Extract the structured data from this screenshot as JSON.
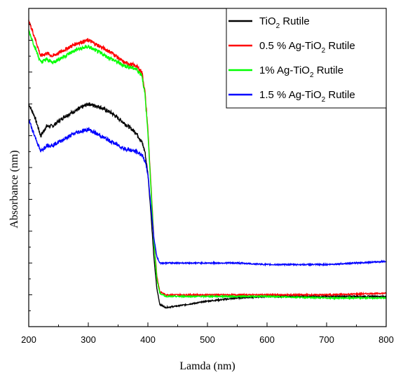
{
  "chart_data": {
    "type": "line",
    "title": "",
    "xlabel": "Lamda (nm)",
    "ylabel": "Absorbance (nm)",
    "xlim": [
      200,
      800
    ],
    "ylim": [
      0,
      1
    ],
    "x_ticks": [
      "200",
      "300",
      "400",
      "500",
      "600",
      "700",
      "800"
    ],
    "y_tick_labels": "none",
    "grid": false,
    "legend_position": "top-right",
    "series": [
      {
        "name": "TiO2 Rutile",
        "name_main": "TiO",
        "name_sub": "2",
        "name_rest": " Rutile",
        "color": "#000000",
        "x": [
          200,
          210,
          220,
          230,
          240,
          260,
          280,
          300,
          320,
          340,
          360,
          380,
          390,
          395,
          400,
          405,
          410,
          415,
          420,
          430,
          450,
          500,
          550,
          600,
          700,
          800
        ],
        "y": [
          0.7,
          0.66,
          0.6,
          0.63,
          0.63,
          0.66,
          0.68,
          0.7,
          0.69,
          0.67,
          0.64,
          0.61,
          0.58,
          0.55,
          0.48,
          0.36,
          0.22,
          0.12,
          0.07,
          0.06,
          0.065,
          0.08,
          0.09,
          0.095,
          0.095,
          0.095
        ]
      },
      {
        "name": "0.5 % Ag-TiO2 Rutile",
        "name_main": "0.5 % Ag-TiO",
        "name_sub": "2",
        "name_rest": " Rutile",
        "color": "#ff0000",
        "x": [
          200,
          210,
          220,
          230,
          240,
          260,
          280,
          300,
          320,
          340,
          360,
          380,
          390,
          395,
          400,
          405,
          410,
          415,
          420,
          430,
          450,
          500,
          550,
          600,
          700,
          800
        ],
        "y": [
          0.96,
          0.91,
          0.85,
          0.86,
          0.85,
          0.87,
          0.89,
          0.9,
          0.88,
          0.86,
          0.83,
          0.82,
          0.8,
          0.74,
          0.62,
          0.45,
          0.28,
          0.16,
          0.11,
          0.1,
          0.1,
          0.1,
          0.1,
          0.1,
          0.1,
          0.105
        ]
      },
      {
        "name": "1% Ag-TiO2 Rutile",
        "name_main": "1% Ag-TiO",
        "name_sub": "2",
        "name_rest": " Rutile",
        "color": "#00ff00",
        "x": [
          200,
          210,
          220,
          230,
          240,
          260,
          280,
          300,
          320,
          340,
          360,
          380,
          390,
          395,
          400,
          405,
          410,
          415,
          420,
          430,
          450,
          500,
          550,
          600,
          700,
          800
        ],
        "y": [
          0.93,
          0.88,
          0.83,
          0.84,
          0.83,
          0.85,
          0.87,
          0.88,
          0.86,
          0.84,
          0.82,
          0.81,
          0.79,
          0.73,
          0.61,
          0.44,
          0.27,
          0.15,
          0.105,
          0.095,
          0.095,
          0.095,
          0.095,
          0.095,
          0.09,
          0.09
        ]
      },
      {
        "name": "1.5 % Ag-TiO2 Rutile",
        "name_main": "1.5 % Ag-TiO",
        "name_sub": "2",
        "name_rest": " Rutile",
        "color": "#0000ff",
        "x": [
          200,
          210,
          220,
          230,
          240,
          260,
          280,
          300,
          320,
          340,
          360,
          380,
          390,
          395,
          400,
          405,
          410,
          415,
          420,
          430,
          450,
          500,
          550,
          600,
          700,
          800
        ],
        "y": [
          0.65,
          0.6,
          0.55,
          0.57,
          0.57,
          0.59,
          0.61,
          0.62,
          0.6,
          0.58,
          0.56,
          0.55,
          0.54,
          0.52,
          0.48,
          0.38,
          0.28,
          0.22,
          0.2,
          0.2,
          0.2,
          0.2,
          0.2,
          0.195,
          0.195,
          0.205
        ]
      }
    ]
  }
}
